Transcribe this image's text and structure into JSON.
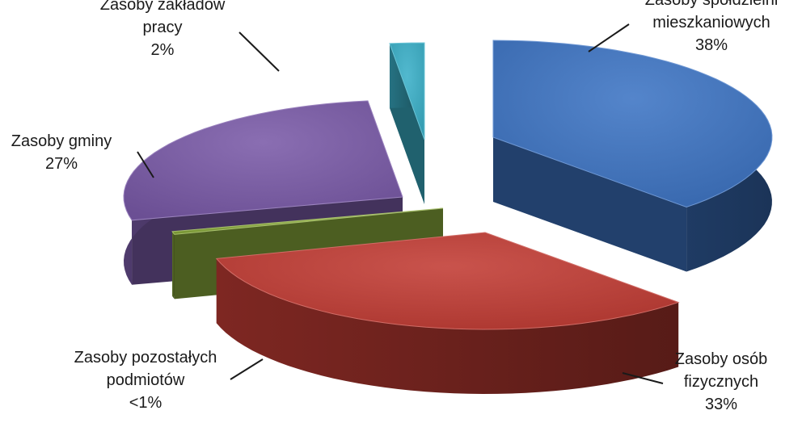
{
  "chart_data": {
    "type": "pie",
    "style": "3d-exploded",
    "legend": "none",
    "slices": [
      {
        "name": "Zasoby spółdzielni mieszkaniowych",
        "label_lines": [
          "Zasoby spółdzielni",
          "mieszkaniowych"
        ],
        "pct_label": "38%",
        "value": 38,
        "color": "#3d74c4"
      },
      {
        "name": "Zasoby osób fizycznych",
        "label_lines": [
          "Zasoby osób",
          "fizycznych"
        ],
        "pct_label": "33%",
        "value": 33,
        "color": "#c23c34"
      },
      {
        "name": "Zasoby pozostałych podmiotów",
        "label_lines": [
          "Zasoby pozostałych",
          "podmiotów"
        ],
        "pct_label": "<1%",
        "value": 0.5,
        "color": "#8aaa3c"
      },
      {
        "name": "Zasoby gminy",
        "label_lines": [
          "Zasoby gminy"
        ],
        "pct_label": "27%",
        "value": 27,
        "color": "#7a5aa8"
      },
      {
        "name": "Zasoby zakładów pracy",
        "label_lines": [
          "Zasoby zakładów",
          "pracy"
        ],
        "pct_label": "2%",
        "value": 2,
        "color": "#3ab0c8"
      }
    ]
  }
}
